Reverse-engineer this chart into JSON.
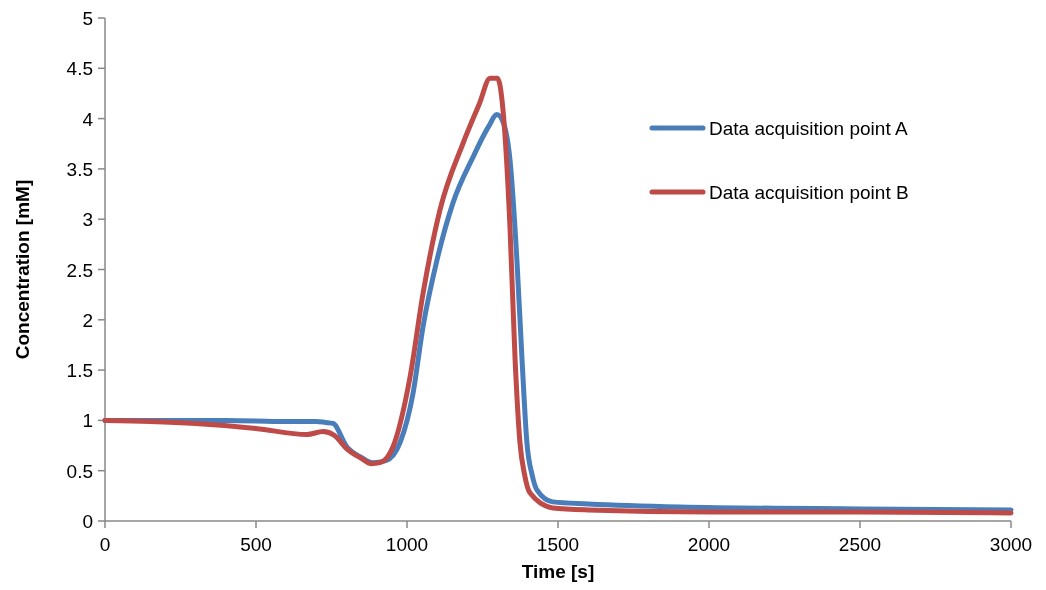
{
  "chart_data": {
    "type": "line",
    "xlabel": "Time [s]",
    "ylabel": "Concentration [mM]",
    "xlim": [
      0,
      3000
    ],
    "xticks": [
      0,
      500,
      1000,
      1500,
      2000,
      2500,
      3000
    ],
    "ylim": [
      0,
      5
    ],
    "yticks": [
      0,
      0.5,
      1,
      1.5,
      2,
      2.5,
      3,
      3.5,
      4,
      4.5,
      5
    ],
    "grid": false,
    "legend": "top right",
    "line_style": "solid",
    "series": [
      {
        "name": "Data acquisition point A",
        "color": "#4a7ebb",
        "x": [
          0,
          200,
          400,
          600,
          700,
          730,
          755,
          800,
          850,
          887,
          930,
          977,
          1020,
          1053,
          1099,
          1152,
          1219,
          1270,
          1298,
          1320,
          1341,
          1364,
          1381,
          1397,
          1415,
          1430,
          1483,
          1600,
          1904,
          2500,
          3000
        ],
        "values": [
          1.0,
          1.0,
          1.0,
          0.99,
          0.99,
          0.98,
          0.97,
          0.74,
          0.63,
          0.58,
          0.6,
          0.78,
          1.27,
          1.93,
          2.59,
          3.16,
          3.62,
          3.92,
          4.04,
          3.95,
          3.59,
          2.59,
          1.6,
          0.78,
          0.45,
          0.31,
          0.19,
          0.17,
          0.14,
          0.12,
          0.11
        ]
      },
      {
        "name": "Data acquisition point B",
        "color": "#be4b48",
        "x": [
          0,
          150,
          300,
          500,
          669,
          722,
          760,
          800,
          850,
          880,
          911,
          954,
          1010,
          1053,
          1109,
          1185,
          1240,
          1275,
          1300,
          1318,
          1341,
          1358,
          1374,
          1390,
          1407,
          1483,
          1600,
          2000,
          2500,
          3000
        ],
        "values": [
          1.0,
          0.99,
          0.97,
          0.92,
          0.86,
          0.89,
          0.85,
          0.72,
          0.62,
          0.57,
          0.58,
          0.74,
          1.43,
          2.26,
          3.09,
          3.75,
          4.15,
          4.4,
          4.4,
          4.08,
          2.92,
          1.6,
          0.78,
          0.45,
          0.28,
          0.13,
          0.11,
          0.09,
          0.09,
          0.08
        ]
      }
    ]
  }
}
